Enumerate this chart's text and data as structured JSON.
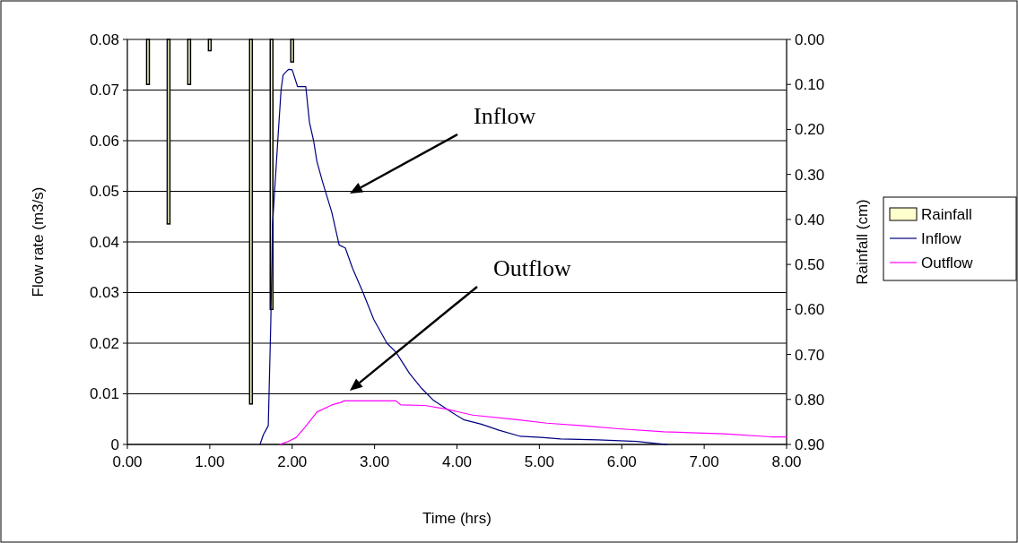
{
  "chart_data": {
    "type": "line",
    "xlabel": "Time (hrs)",
    "ylabel": "Flow rate (m3/s)",
    "y2label": "Rainfall (cm)",
    "xlim": [
      0,
      8
    ],
    "xticks": [
      {
        "value": 0,
        "label": "0.00"
      },
      {
        "value": 1,
        "label": "1.00"
      },
      {
        "value": 2,
        "label": "2.00"
      },
      {
        "value": 3,
        "label": "3.00"
      },
      {
        "value": 4,
        "label": "4.00"
      },
      {
        "value": 5,
        "label": "5.00"
      },
      {
        "value": 6,
        "label": "6.00"
      },
      {
        "value": 7,
        "label": "7.00"
      },
      {
        "value": 8,
        "label": "8.00"
      }
    ],
    "ylim": [
      0,
      0.08
    ],
    "yticks": [
      0,
      0.01,
      0.02,
      0.03,
      0.04,
      0.05,
      0.06,
      0.07,
      0.08
    ],
    "y2lim": [
      0.9,
      0
    ],
    "y2ticks": [
      {
        "value": 0,
        "label": "0.00"
      },
      {
        "value": 0.1,
        "label": "0.10"
      },
      {
        "value": 0.2,
        "label": "0.20"
      },
      {
        "value": 0.3,
        "label": "0.30"
      },
      {
        "value": 0.4,
        "label": "0.40"
      },
      {
        "value": 0.5,
        "label": "0.50"
      },
      {
        "value": 0.6,
        "label": "0.60"
      },
      {
        "value": 0.7,
        "label": "0.70"
      },
      {
        "value": 0.8,
        "label": "0.80"
      },
      {
        "value": 0.9,
        "label": "0.90"
      }
    ],
    "grid": "y",
    "legend": "right",
    "marker": "none",
    "series": [
      {
        "name": "Rainfall",
        "type": "bar",
        "axis": "y2",
        "color": "#ffffcc",
        "x": [
          0.25,
          0.5,
          0.75,
          1.0,
          1.5,
          1.75,
          2.0
        ],
        "values": [
          0.1,
          0.41,
          0.1,
          0.025,
          0.81,
          0.6,
          0.05
        ]
      },
      {
        "name": "Inflow",
        "color": "#000080",
        "x": [
          1.61,
          1.65,
          1.71,
          1.74,
          1.755,
          1.76,
          1.83,
          1.865,
          1.89,
          1.955,
          2.0,
          2.065,
          2.165,
          2.21,
          2.26,
          2.3,
          2.37,
          2.48,
          2.57,
          2.645,
          2.735,
          2.86,
          2.99,
          3.15,
          3.26,
          3.425,
          3.57,
          3.715,
          3.93,
          4.08,
          4.295,
          4.51,
          4.77,
          5.02,
          5.26,
          5.71,
          6.18,
          6.36,
          6.55
        ],
        "values": [
          0,
          0.0019,
          0.0037,
          0.0237,
          0.037,
          0.043,
          0.0612,
          0.07,
          0.073,
          0.0741,
          0.074,
          0.0707,
          0.0707,
          0.0636,
          0.06,
          0.0559,
          0.0518,
          0.0459,
          0.0394,
          0.0388,
          0.0347,
          0.03,
          0.0247,
          0.02,
          0.0182,
          0.014,
          0.0111,
          0.0087,
          0.0064,
          0.0049,
          0.004,
          0.0028,
          0.0016,
          0.0014,
          0.0011,
          0.0009,
          0.0006,
          0.0003,
          0
        ]
      },
      {
        "name": "Outflow",
        "color": "#ff00ff",
        "x": [
          1.85,
          1.94,
          2.05,
          2.155,
          2.3,
          2.48,
          2.59,
          2.63,
          3.26,
          3.32,
          3.61,
          3.86,
          4.19,
          4.73,
          5.09,
          5.53,
          5.96,
          6.51,
          7.23,
          7.81,
          8.0
        ],
        "values": [
          0,
          0.0005,
          0.0014,
          0.0034,
          0.0064,
          0.0078,
          0.0083,
          0.0086,
          0.0086,
          0.0078,
          0.0077,
          0.007,
          0.0058,
          0.0049,
          0.0042,
          0.0037,
          0.0031,
          0.0025,
          0.0021,
          0.0015,
          0.0015
        ]
      }
    ],
    "annotations": [
      "Inflow",
      "Outflow"
    ]
  }
}
